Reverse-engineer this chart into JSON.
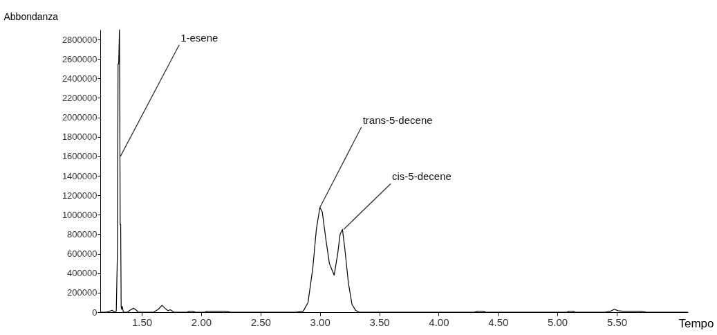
{
  "chart_data": {
    "type": "line",
    "xlabel": "Tempo",
    "ylabel": "Abbondanza",
    "x": [
      1.15,
      1.2,
      1.23,
      1.25,
      1.27,
      1.285,
      1.295,
      1.3,
      1.305,
      1.312,
      1.318,
      1.322,
      1.326,
      1.33,
      1.335,
      1.345,
      1.36,
      1.38,
      1.4,
      1.43,
      1.45,
      1.47,
      1.5,
      1.55,
      1.6,
      1.64,
      1.67,
      1.7,
      1.72,
      1.74,
      1.77,
      1.8,
      1.88,
      1.9,
      1.93,
      1.95,
      2.03,
      2.05,
      2.15,
      2.2,
      2.25,
      2.5,
      2.8,
      2.86,
      2.9,
      2.94,
      2.97,
      3.0,
      3.02,
      3.05,
      3.08,
      3.12,
      3.15,
      3.17,
      3.19,
      3.21,
      3.24,
      3.27,
      3.3,
      3.33,
      3.4,
      3.8,
      4.3,
      4.33,
      4.37,
      4.4,
      5.0,
      5.08,
      5.1,
      5.13,
      5.15,
      5.4,
      5.45,
      5.48,
      5.51,
      5.55,
      5.7,
      5.75,
      6.1
    ],
    "series": [
      {
        "color": "#000000",
        "values": [
          0,
          0,
          10000,
          20000,
          0,
          10000,
          650000,
          2550000,
          2550000,
          2900000,
          900000,
          900000,
          60000,
          30000,
          60000,
          0,
          0,
          0,
          20000,
          40000,
          25000,
          0,
          0,
          0,
          0,
          30000,
          70000,
          35000,
          15000,
          25000,
          0,
          0,
          0,
          10000,
          10000,
          0,
          0,
          10000,
          10000,
          10000,
          0,
          0,
          0,
          10000,
          100000,
          450000,
          850000,
          1075000,
          1030000,
          750000,
          500000,
          380000,
          600000,
          800000,
          850000,
          650000,
          300000,
          80000,
          20000,
          0,
          0,
          0,
          0,
          10000,
          10000,
          0,
          0,
          0,
          10000,
          10000,
          0,
          0,
          10000,
          30000,
          15000,
          10000,
          10000,
          0,
          0
        ]
      }
    ],
    "xlim": [
      1.15,
      6.1
    ],
    "ylim": [
      0,
      2900000
    ],
    "xticks": [
      {
        "value": 1.5,
        "label": "1.50"
      },
      {
        "value": 2,
        "label": "2.00"
      },
      {
        "value": 2.5,
        "label": "2.50"
      },
      {
        "value": 3,
        "label": "3.00"
      },
      {
        "value": 3.5,
        "label": "3.50"
      },
      {
        "value": 4,
        "label": "4.00"
      },
      {
        "value": 4.5,
        "label": "4.50"
      },
      {
        "value": 5,
        "label": "5.00"
      },
      {
        "value": 5.5,
        "label": "5.50"
      }
    ],
    "yticks": [
      0,
      200000,
      400000,
      600000,
      800000,
      1000000,
      1200000,
      1400000,
      1600000,
      1800000,
      2000000,
      2200000,
      2400000,
      2600000,
      2800000
    ],
    "grid": false,
    "marker": "none",
    "line_style": "solid",
    "annotations": [
      {
        "text": "1-esene",
        "x": 1.32,
        "y": 1600000
      },
      {
        "text": "trans-5-decene",
        "x": 3.0,
        "y": 1075000
      },
      {
        "text": "cis-5-decene",
        "x": 3.2,
        "y": 850000
      }
    ]
  }
}
